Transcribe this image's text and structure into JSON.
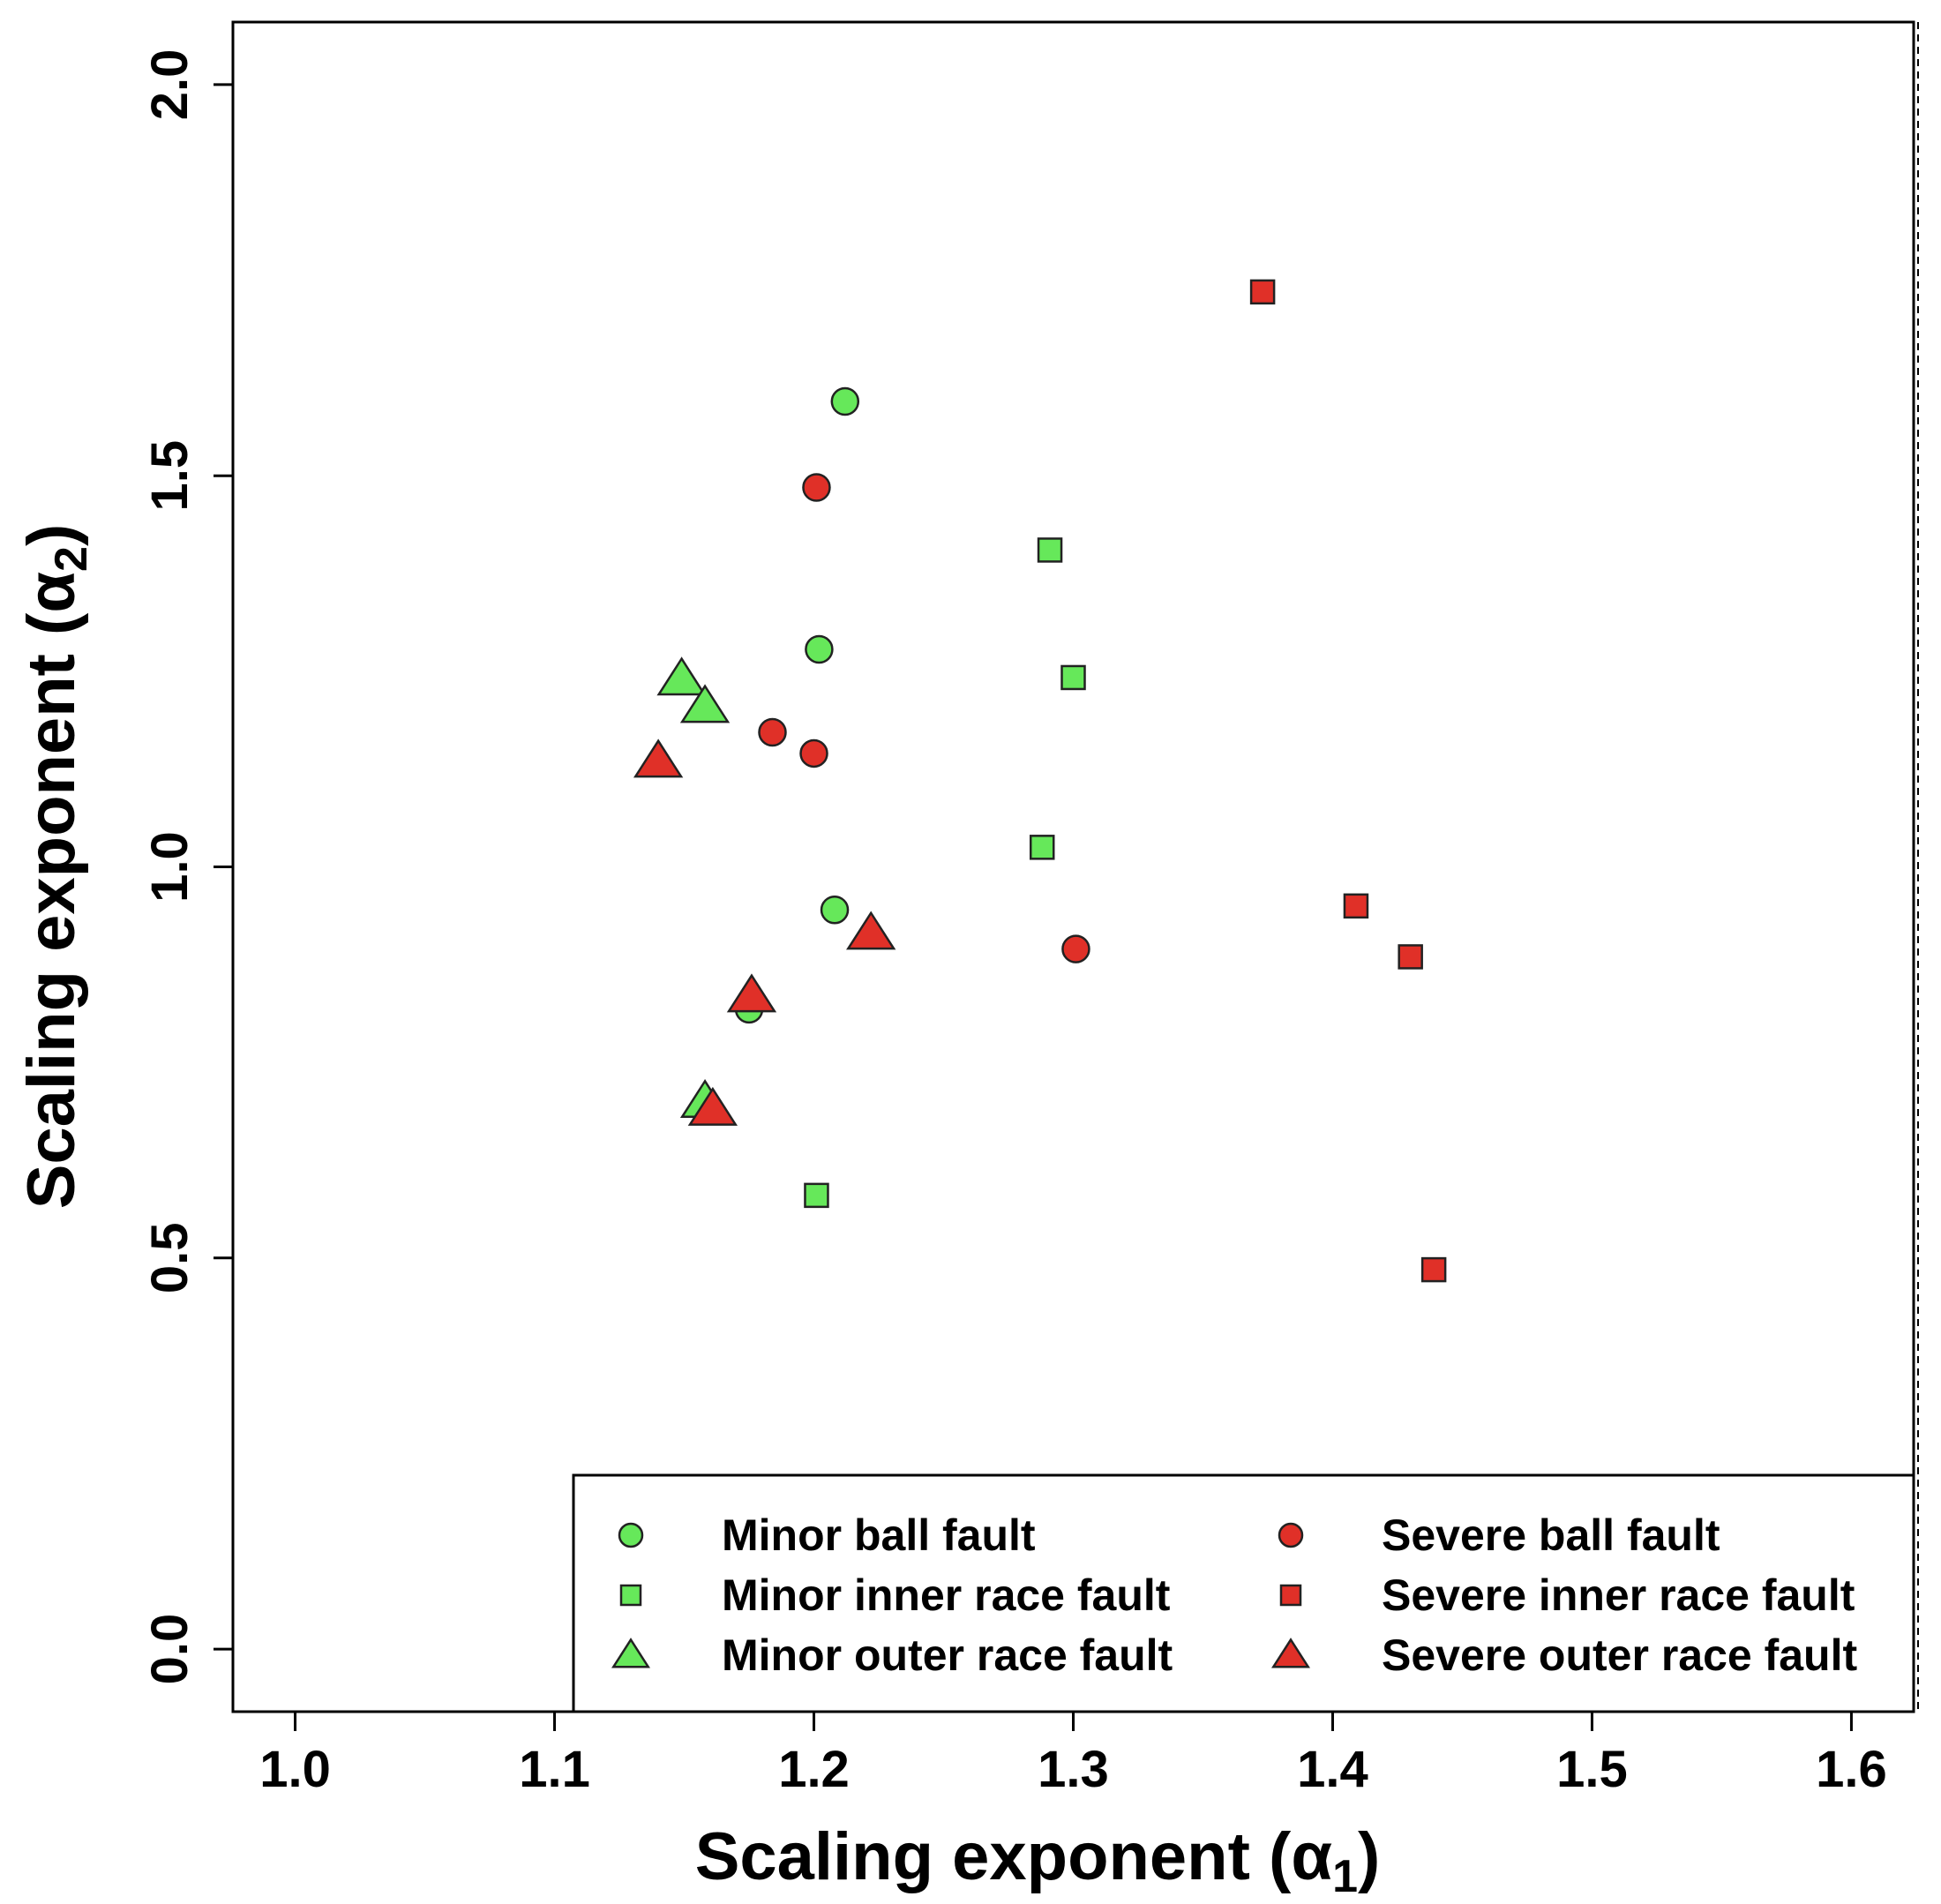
{
  "chart_data": {
    "type": "scatter",
    "xlabel": "Scaling exponent (α",
    "xlabel_sub": "1",
    "xlabel_close": ")",
    "ylabel": "Scaling exponent (α",
    "ylabel_sub": "2",
    "ylabel_close": ")",
    "xlim": [
      0.976,
      1.624
    ],
    "ylim": [
      -0.08,
      2.08
    ],
    "xticks": [
      1.0,
      1.1,
      1.2,
      1.3,
      1.4,
      1.5,
      1.6
    ],
    "xtick_labels": [
      "1.0",
      "1.1",
      "1.2",
      "1.3",
      "1.4",
      "1.5",
      "1.6"
    ],
    "yticks": [
      0.0,
      0.5,
      1.0,
      1.5,
      2.0
    ],
    "ytick_labels": [
      "0.0",
      "0.5",
      "1.0",
      "1.5",
      "2.0"
    ],
    "grid": false,
    "legend_position": "bottom-right",
    "colors": {
      "minor": "#66e85a",
      "severe": "#e03028",
      "stroke": "#222222"
    },
    "series": [
      {
        "name": "Minor ball fault",
        "marker": "circle",
        "color": "minor",
        "points": [
          [
            1.212,
            1.595
          ],
          [
            1.202,
            1.278
          ],
          [
            1.208,
            0.945
          ],
          [
            1.175,
            0.818
          ]
        ]
      },
      {
        "name": "Minor inner race fault",
        "marker": "square",
        "color": "minor",
        "points": [
          [
            1.291,
            1.405
          ],
          [
            1.3,
            1.242
          ],
          [
            1.288,
            1.025
          ],
          [
            1.201,
            0.58
          ]
        ]
      },
      {
        "name": "Minor outer race fault",
        "marker": "triangle",
        "color": "minor",
        "points": [
          [
            1.149,
            1.24
          ],
          [
            1.158,
            1.205
          ],
          [
            1.158,
            0.7
          ]
        ]
      },
      {
        "name": "Severe ball fault",
        "marker": "circle",
        "color": "severe",
        "points": [
          [
            1.201,
            1.485
          ],
          [
            1.184,
            1.172
          ],
          [
            1.2,
            1.145
          ],
          [
            1.301,
            0.895
          ]
        ]
      },
      {
        "name": "Severe inner race fault",
        "marker": "square",
        "color": "severe",
        "points": [
          [
            1.373,
            1.735
          ],
          [
            1.409,
            0.95
          ],
          [
            1.43,
            0.885
          ],
          [
            1.439,
            0.485
          ]
        ]
      },
      {
        "name": "Severe outer race fault",
        "marker": "triangle",
        "color": "severe",
        "points": [
          [
            1.14,
            1.135
          ],
          [
            1.222,
            0.915
          ],
          [
            1.176,
            0.835
          ],
          [
            1.161,
            0.69
          ]
        ]
      }
    ]
  }
}
